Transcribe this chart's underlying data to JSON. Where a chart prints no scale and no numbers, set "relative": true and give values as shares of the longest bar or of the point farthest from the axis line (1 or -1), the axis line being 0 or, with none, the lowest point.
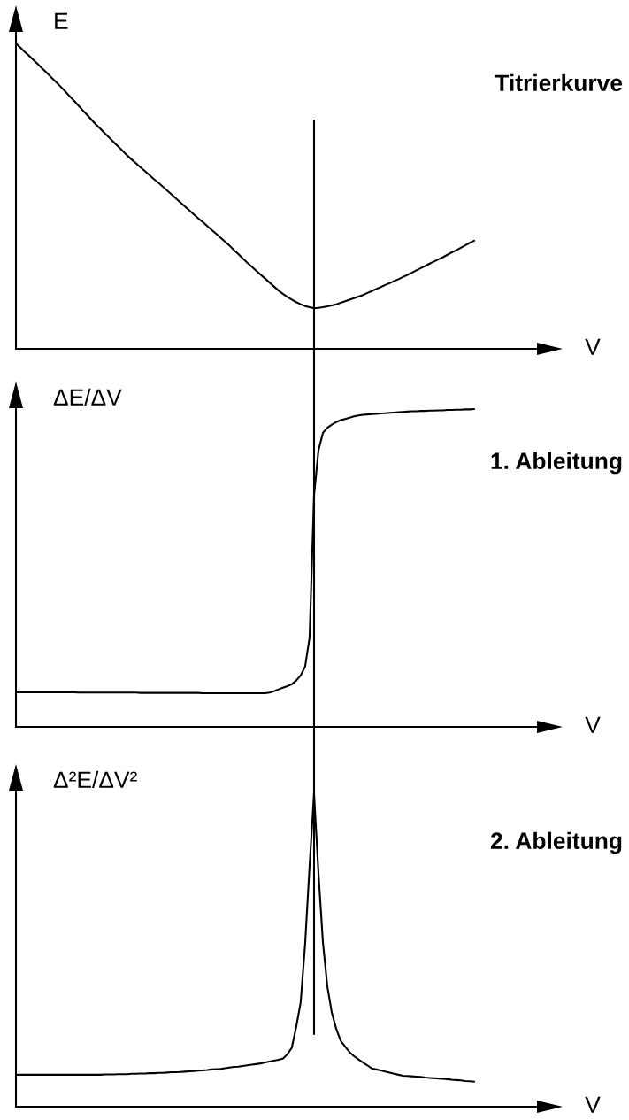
{
  "chart_data": [
    {
      "type": "line",
      "xlabel": "V",
      "ylabel": "E",
      "relative": true,
      "annotations": [
        "Titrierkurve"
      ],
      "categories": [
        null,
        null,
        null,
        null,
        null,
        null,
        null,
        null,
        null,
        null,
        null,
        null,
        null,
        null,
        null,
        null,
        null,
        null,
        null,
        null,
        null,
        null,
        null,
        null,
        null,
        null,
        null,
        null,
        null,
        null,
        null,
        null,
        null,
        null,
        null,
        null,
        null,
        null,
        null,
        null,
        null,
        null,
        null,
        null,
        null,
        null,
        null,
        null,
        null,
        null,
        null,
        null,
        null,
        null,
        null,
        null,
        null,
        null,
        null,
        null,
        null,
        null,
        null,
        null,
        null,
        null,
        null,
        null,
        null,
        null,
        null,
        null,
        null,
        null,
        null,
        null,
        null,
        null,
        null,
        null,
        null,
        null,
        null,
        null,
        null,
        null,
        null,
        null,
        null,
        null,
        null,
        null,
        null,
        null,
        null,
        null,
        null,
        null,
        null,
        null,
        null,
        null,
        null,
        null
      ],
      "series": [
        {
          "color": "#000000",
          "values": [
            1.0,
            0.986,
            0.972,
            0.959,
            0.945,
            0.931,
            0.917,
            0.903,
            0.888,
            0.874,
            0.859,
            0.844,
            0.828,
            0.813,
            0.797,
            0.781,
            0.766,
            0.75,
            0.734,
            0.72,
            0.705,
            0.691,
            0.676,
            0.662,
            0.648,
            0.633,
            0.62,
            0.607,
            0.594,
            0.582,
            0.569,
            0.556,
            0.544,
            0.531,
            0.518,
            0.505,
            0.492,
            0.479,
            0.466,
            0.453,
            0.44,
            0.427,
            0.415,
            0.402,
            0.389,
            0.377,
            0.364,
            0.351,
            0.338,
            0.323,
            0.31,
            0.296,
            0.282,
            0.269,
            0.256,
            0.243,
            0.23,
            0.217,
            0.204,
            0.191,
            0.18,
            0.17,
            0.161,
            0.153,
            0.146,
            0.14,
            0.136,
            0.133,
            0.134,
            0.136,
            0.139,
            0.142,
            0.146,
            0.151,
            0.156,
            0.161,
            0.166,
            0.171,
            0.176,
            0.183,
            0.189,
            0.196,
            0.202,
            0.209,
            0.215,
            0.222,
            0.228,
            0.235,
            0.242,
            0.249,
            0.257,
            0.264,
            0.271,
            0.279,
            0.286,
            0.293,
            0.3,
            0.308,
            0.316,
            0.323,
            0.331,
            0.339,
            0.347,
            0.354
          ]
        }
      ]
    },
    {
      "type": "line",
      "xlabel": "V",
      "ylabel": "ΔE/ΔV",
      "relative": true,
      "annotations": [
        "1. Ableitung"
      ],
      "categories": [
        null,
        null,
        null,
        null,
        null,
        null,
        null,
        null,
        null,
        null,
        null,
        null,
        null,
        null,
        null,
        null,
        null,
        null,
        null,
        null,
        null,
        null,
        null,
        null,
        null,
        null,
        null,
        null,
        null,
        null,
        null,
        null,
        null,
        null,
        null,
        null,
        null,
        null,
        null,
        null,
        null,
        null,
        null,
        null,
        null,
        null,
        null,
        null,
        null,
        null,
        null,
        null,
        null,
        null,
        null,
        null,
        null,
        null,
        null,
        null,
        null,
        null,
        null,
        null,
        null,
        null,
        null,
        null,
        null,
        null,
        null,
        null,
        null,
        null,
        null,
        null,
        null,
        null,
        null,
        null,
        null,
        null,
        null,
        null,
        null,
        null,
        null,
        null,
        null,
        null,
        null,
        null,
        null,
        null,
        null,
        null,
        null,
        null,
        null,
        null,
        null,
        null,
        null,
        null
      ],
      "series": [
        {
          "color": "#000000",
          "values": [
            0.109,
            0.109,
            0.109,
            0.109,
            0.109,
            0.109,
            0.109,
            0.109,
            0.109,
            0.109,
            0.109,
            0.109,
            0.109,
            0.109,
            0.108,
            0.108,
            0.108,
            0.108,
            0.108,
            0.108,
            0.108,
            0.108,
            0.108,
            0.108,
            0.108,
            0.108,
            0.108,
            0.108,
            0.107,
            0.107,
            0.107,
            0.107,
            0.107,
            0.107,
            0.107,
            0.107,
            0.107,
            0.107,
            0.107,
            0.107,
            0.107,
            0.107,
            0.106,
            0.106,
            0.106,
            0.106,
            0.106,
            0.106,
            0.106,
            0.106,
            0.106,
            0.106,
            0.106,
            0.106,
            0.106,
            0.106,
            0.106,
            0.108,
            0.112,
            0.118,
            0.123,
            0.128,
            0.134,
            0.146,
            0.162,
            0.19,
            0.281,
            0.727,
            0.87,
            0.925,
            0.941,
            0.951,
            0.959,
            0.965,
            0.969,
            0.973,
            0.977,
            0.98,
            0.982,
            0.983,
            0.984,
            0.985,
            0.986,
            0.987,
            0.988,
            0.989,
            0.99,
            0.991,
            0.992,
            0.993,
            0.993,
            0.994,
            0.994,
            0.995,
            0.995,
            0.996,
            0.996,
            0.997,
            0.997,
            0.998,
            0.998,
            0.999,
            0.999,
            1.0
          ]
        }
      ]
    },
    {
      "type": "line",
      "xlabel": "V",
      "ylabel": "Δ²E/ΔV²",
      "relative": true,
      "annotations": [
        "2. Ableitung"
      ],
      "categories": [
        null,
        null,
        null,
        null,
        null,
        null,
        null,
        null,
        null,
        null,
        null,
        null,
        null,
        null,
        null,
        null,
        null,
        null,
        null,
        null,
        null,
        null,
        null,
        null,
        null,
        null,
        null,
        null,
        null,
        null,
        null,
        null,
        null,
        null,
        null,
        null,
        null,
        null,
        null,
        null,
        null,
        null,
        null,
        null,
        null,
        null,
        null,
        null,
        null,
        null,
        null,
        null,
        null,
        null,
        null,
        null,
        null,
        null,
        null,
        null,
        null,
        null,
        null,
        null,
        null,
        null,
        null,
        null,
        null,
        null,
        null,
        null,
        null,
        null,
        null,
        null,
        null,
        null,
        null,
        null,
        null,
        null,
        null,
        null,
        null,
        null,
        null,
        null,
        null,
        null,
        null,
        null,
        null,
        null,
        null,
        null,
        null,
        null,
        null,
        null,
        null,
        null,
        null,
        null
      ],
      "series": [
        {
          "color": "#000000",
          "values": [
            0.102,
            0.102,
            0.102,
            0.102,
            0.102,
            0.102,
            0.102,
            0.102,
            0.102,
            0.102,
            0.102,
            0.102,
            0.102,
            0.102,
            0.102,
            0.102,
            0.102,
            0.102,
            0.102,
            0.102,
            0.103,
            0.103,
            0.103,
            0.104,
            0.104,
            0.104,
            0.105,
            0.105,
            0.106,
            0.106,
            0.107,
            0.107,
            0.108,
            0.108,
            0.109,
            0.11,
            0.11,
            0.111,
            0.112,
            0.113,
            0.114,
            0.115,
            0.116,
            0.117,
            0.119,
            0.12,
            0.121,
            0.123,
            0.125,
            0.127,
            0.128,
            0.13,
            0.132,
            0.134,
            0.136,
            0.138,
            0.141,
            0.144,
            0.147,
            0.15,
            0.153,
            0.167,
            0.188,
            0.255,
            0.333,
            0.519,
            0.767,
            1.0,
            0.746,
            0.525,
            0.384,
            0.3,
            0.248,
            0.21,
            0.192,
            0.174,
            0.161,
            0.151,
            0.141,
            0.132,
            0.122,
            0.119,
            0.116,
            0.112,
            0.109,
            0.105,
            0.102,
            0.099,
            0.098,
            0.097,
            0.096,
            0.095,
            0.093,
            0.092,
            0.091,
            0.09,
            0.089,
            0.088,
            0.086,
            0.085,
            0.084,
            0.082,
            0.081,
            0.08
          ]
        }
      ]
    }
  ]
}
